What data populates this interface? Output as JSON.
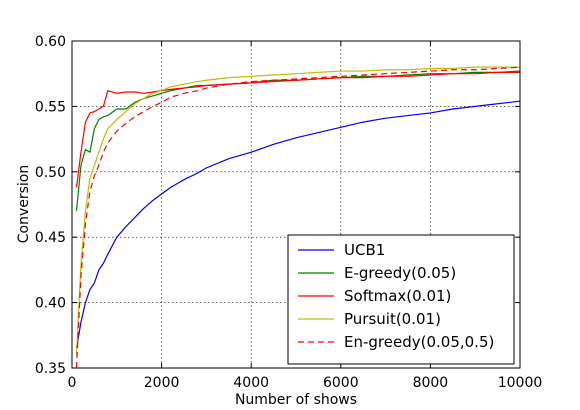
{
  "chart_data": {
    "type": "line",
    "title": "",
    "xlabel": "Number of shows",
    "ylabel": "Conversion",
    "xlim": [
      0,
      10000
    ],
    "ylim": [
      0.35,
      0.6
    ],
    "x_ticks": [
      0,
      2000,
      4000,
      6000,
      8000,
      10000
    ],
    "x_tick_labels": [
      "0",
      "2000",
      "4000",
      "6000",
      "8000",
      "10000"
    ],
    "y_ticks": [
      0.35,
      0.4,
      0.45,
      0.5,
      0.55,
      0.6
    ],
    "y_tick_labels": [
      "0.35",
      "0.40",
      "0.45",
      "0.50",
      "0.55",
      "0.60"
    ],
    "grid": true,
    "legend_position": "lower-right",
    "series": [
      {
        "name": "UCB1",
        "color": "#0000ff",
        "dash": "solid",
        "points": [
          [
            100,
            0.365
          ],
          [
            200,
            0.385
          ],
          [
            300,
            0.4
          ],
          [
            400,
            0.41
          ],
          [
            500,
            0.415
          ],
          [
            600,
            0.425
          ],
          [
            700,
            0.43
          ],
          [
            800,
            0.437
          ],
          [
            1000,
            0.45
          ],
          [
            1200,
            0.458
          ],
          [
            1400,
            0.465
          ],
          [
            1600,
            0.472
          ],
          [
            1800,
            0.478
          ],
          [
            2000,
            0.483
          ],
          [
            2200,
            0.488
          ],
          [
            2500,
            0.494
          ],
          [
            2800,
            0.499
          ],
          [
            3000,
            0.503
          ],
          [
            3500,
            0.51
          ],
          [
            4000,
            0.515
          ],
          [
            4500,
            0.521
          ],
          [
            5000,
            0.526
          ],
          [
            5500,
            0.53
          ],
          [
            6000,
            0.534
          ],
          [
            6500,
            0.538
          ],
          [
            7000,
            0.541
          ],
          [
            7500,
            0.543
          ],
          [
            8000,
            0.545
          ],
          [
            8500,
            0.548
          ],
          [
            9000,
            0.55
          ],
          [
            9500,
            0.552
          ],
          [
            10000,
            0.554
          ]
        ]
      },
      {
        "name": "E-greedy(0.05)",
        "color": "#008000",
        "dash": "solid",
        "points": [
          [
            100,
            0.47
          ],
          [
            200,
            0.505
          ],
          [
            300,
            0.517
          ],
          [
            400,
            0.515
          ],
          [
            500,
            0.533
          ],
          [
            600,
            0.54
          ],
          [
            700,
            0.542
          ],
          [
            800,
            0.543
          ],
          [
            1000,
            0.548
          ],
          [
            1200,
            0.548
          ],
          [
            1400,
            0.553
          ],
          [
            1600,
            0.556
          ],
          [
            1800,
            0.558
          ],
          [
            2000,
            0.56
          ],
          [
            2200,
            0.562
          ],
          [
            2500,
            0.564
          ],
          [
            2800,
            0.566
          ],
          [
            3000,
            0.566
          ],
          [
            3500,
            0.567
          ],
          [
            4000,
            0.568
          ],
          [
            4500,
            0.57
          ],
          [
            5000,
            0.57
          ],
          [
            5500,
            0.571
          ],
          [
            6000,
            0.572
          ],
          [
            6500,
            0.573
          ],
          [
            7000,
            0.573
          ],
          [
            7500,
            0.574
          ],
          [
            8000,
            0.575
          ],
          [
            8500,
            0.575
          ],
          [
            9000,
            0.576
          ],
          [
            9500,
            0.576
          ],
          [
            10000,
            0.577
          ]
        ]
      },
      {
        "name": "Softmax(0.01)",
        "color": "#ff0000",
        "dash": "solid",
        "points": [
          [
            100,
            0.488
          ],
          [
            200,
            0.515
          ],
          [
            300,
            0.538
          ],
          [
            400,
            0.545
          ],
          [
            500,
            0.546
          ],
          [
            600,
            0.548
          ],
          [
            700,
            0.55
          ],
          [
            800,
            0.562
          ],
          [
            1000,
            0.56
          ],
          [
            1200,
            0.561
          ],
          [
            1400,
            0.561
          ],
          [
            1600,
            0.56
          ],
          [
            1800,
            0.561
          ],
          [
            2000,
            0.562
          ],
          [
            2200,
            0.563
          ],
          [
            2500,
            0.564
          ],
          [
            2800,
            0.565
          ],
          [
            3000,
            0.566
          ],
          [
            3500,
            0.567
          ],
          [
            4000,
            0.568
          ],
          [
            4500,
            0.569
          ],
          [
            5000,
            0.57
          ],
          [
            5500,
            0.571
          ],
          [
            6000,
            0.572
          ],
          [
            6500,
            0.572
          ],
          [
            7000,
            0.573
          ],
          [
            7500,
            0.573
          ],
          [
            8000,
            0.574
          ],
          [
            8500,
            0.575
          ],
          [
            9000,
            0.575
          ],
          [
            9500,
            0.576
          ],
          [
            10000,
            0.576
          ]
        ]
      },
      {
        "name": "Pursuit(0.01)",
        "color": "#bfbf00",
        "dash": "solid",
        "points": [
          [
            100,
            0.36
          ],
          [
            200,
            0.43
          ],
          [
            300,
            0.47
          ],
          [
            400,
            0.495
          ],
          [
            500,
            0.505
          ],
          [
            600,
            0.515
          ],
          [
            700,
            0.525
          ],
          [
            800,
            0.533
          ],
          [
            1000,
            0.54
          ],
          [
            1200,
            0.546
          ],
          [
            1400,
            0.552
          ],
          [
            1600,
            0.556
          ],
          [
            1800,
            0.56
          ],
          [
            2000,
            0.562
          ],
          [
            2200,
            0.565
          ],
          [
            2500,
            0.567
          ],
          [
            2800,
            0.569
          ],
          [
            3000,
            0.57
          ],
          [
            3500,
            0.572
          ],
          [
            4000,
            0.573
          ],
          [
            4500,
            0.574
          ],
          [
            5000,
            0.575
          ],
          [
            5500,
            0.576
          ],
          [
            6000,
            0.577
          ],
          [
            6500,
            0.577
          ],
          [
            7000,
            0.578
          ],
          [
            7500,
            0.578
          ],
          [
            8000,
            0.579
          ],
          [
            8500,
            0.579
          ],
          [
            9000,
            0.58
          ],
          [
            9500,
            0.58
          ],
          [
            10000,
            0.58
          ]
        ]
      },
      {
        "name": "En-greedy(0.05,0.5)",
        "color": "#ff0000",
        "dash": "dashed",
        "points": [
          [
            100,
            0.35
          ],
          [
            200,
            0.42
          ],
          [
            300,
            0.46
          ],
          [
            400,
            0.485
          ],
          [
            500,
            0.497
          ],
          [
            600,
            0.505
          ],
          [
            700,
            0.515
          ],
          [
            800,
            0.522
          ],
          [
            1000,
            0.531
          ],
          [
            1200,
            0.537
          ],
          [
            1400,
            0.542
          ],
          [
            1600,
            0.546
          ],
          [
            1800,
            0.55
          ],
          [
            2000,
            0.553
          ],
          [
            2200,
            0.557
          ],
          [
            2500,
            0.56
          ],
          [
            2800,
            0.562
          ],
          [
            3000,
            0.564
          ],
          [
            3500,
            0.567
          ],
          [
            4000,
            0.569
          ],
          [
            4500,
            0.57
          ],
          [
            5000,
            0.571
          ],
          [
            5500,
            0.572
          ],
          [
            6000,
            0.573
          ],
          [
            6500,
            0.574
          ],
          [
            7000,
            0.575
          ],
          [
            7500,
            0.576
          ],
          [
            8000,
            0.577
          ],
          [
            8500,
            0.578
          ],
          [
            9000,
            0.578
          ],
          [
            9500,
            0.579
          ],
          [
            10000,
            0.58
          ]
        ]
      }
    ]
  }
}
